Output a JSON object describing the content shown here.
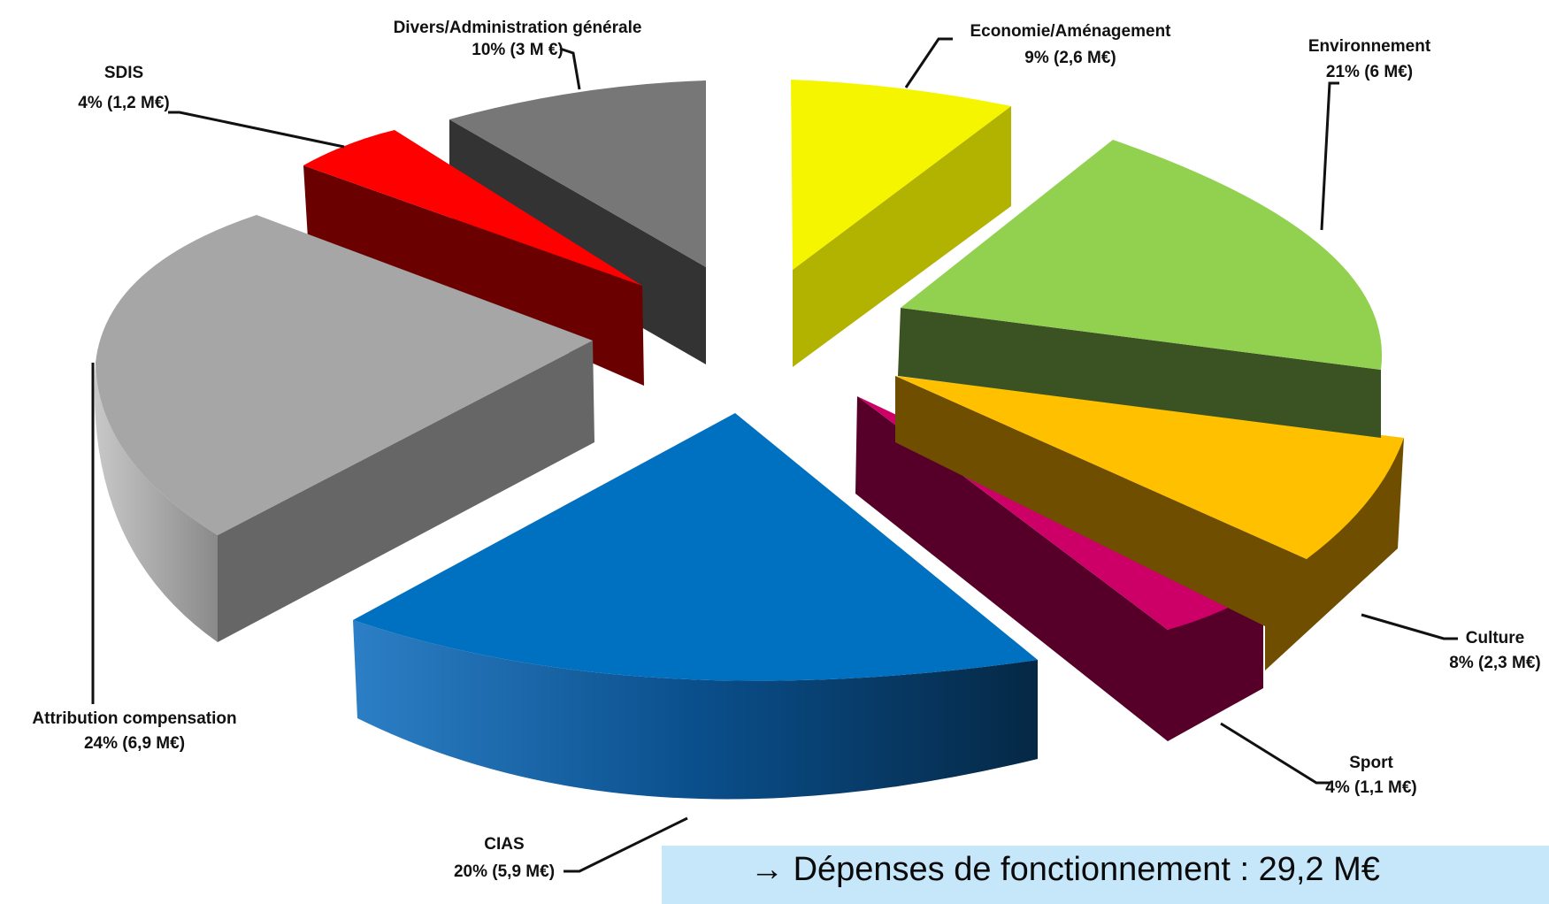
{
  "chart_data": {
    "type": "pie",
    "title": "",
    "slices": [
      {
        "name": "Economie/Aménagement",
        "percent": 9,
        "amount_label": "9% (2,6 M€)",
        "color": "#f5f500"
      },
      {
        "name": "Environnement",
        "percent": 21,
        "amount_label": "21% (6 M€)",
        "color": "#92d050"
      },
      {
        "name": "Culture",
        "percent": 8,
        "amount_label": "8% (2,3 M€)",
        "color": "#ffc000"
      },
      {
        "name": "Sport",
        "percent": 4,
        "amount_label": "4% (1,1 M€)",
        "color": "#cc0066"
      },
      {
        "name": "CIAS",
        "percent": 20,
        "amount_label": "20% (5,9 M€)",
        "color": "#0070c0"
      },
      {
        "name": "Attribution compensation",
        "percent": 24,
        "amount_label": "24% (6,9 M€)",
        "color": "#a6a6a6"
      },
      {
        "name": "SDIS",
        "percent": 4,
        "amount_label": "4% (1,2 M€)",
        "color": "#ff0000"
      },
      {
        "name": "Divers/Administration générale",
        "percent": 10,
        "amount_label": "10% (3 M €)",
        "color": "#7f7f7f"
      }
    ]
  },
  "total": {
    "arrow": "→",
    "label": "Dépenses de fonctionnement : 29,2 M€"
  }
}
